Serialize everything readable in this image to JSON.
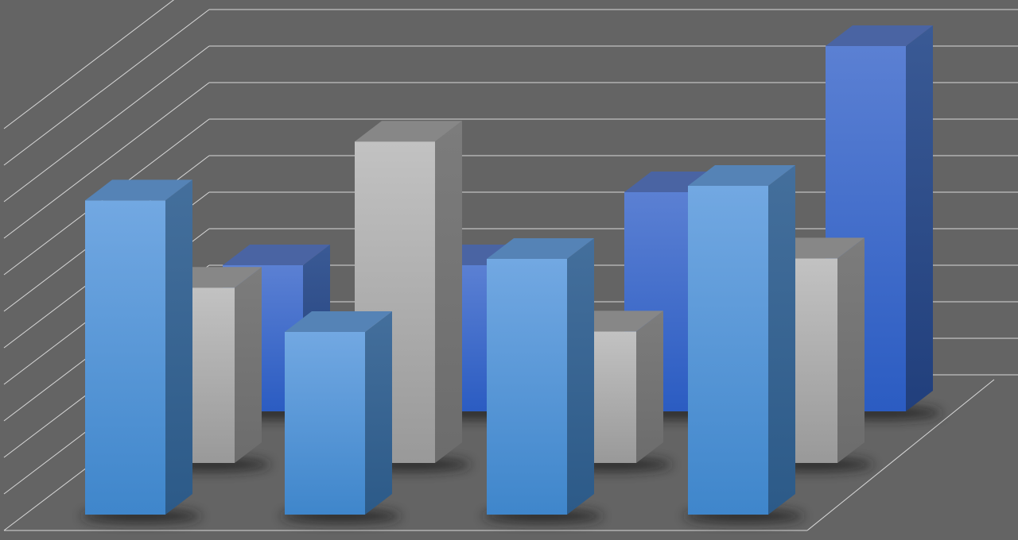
{
  "chart_data": {
    "type": "bar",
    "variant": "3d-clustered-depth",
    "title": "",
    "xlabel": "",
    "ylabel": "",
    "categories": [
      "",
      "",
      "",
      ""
    ],
    "ylim": [
      0,
      11
    ],
    "grid": true,
    "legend": "none",
    "background_color": "#646464",
    "gridline_color": "#d8d8d8",
    "series": [
      {
        "row": "back",
        "color": "#3f6cd0",
        "values": [
          4,
          4,
          6,
          10
        ]
      },
      {
        "row": "middle",
        "color": "#b0b0b0",
        "values": [
          4.8,
          8.8,
          3.6,
          5.6
        ]
      },
      {
        "row": "front",
        "color": "#5a9ddf",
        "values": [
          8.6,
          5,
          7,
          9
        ]
      }
    ]
  }
}
